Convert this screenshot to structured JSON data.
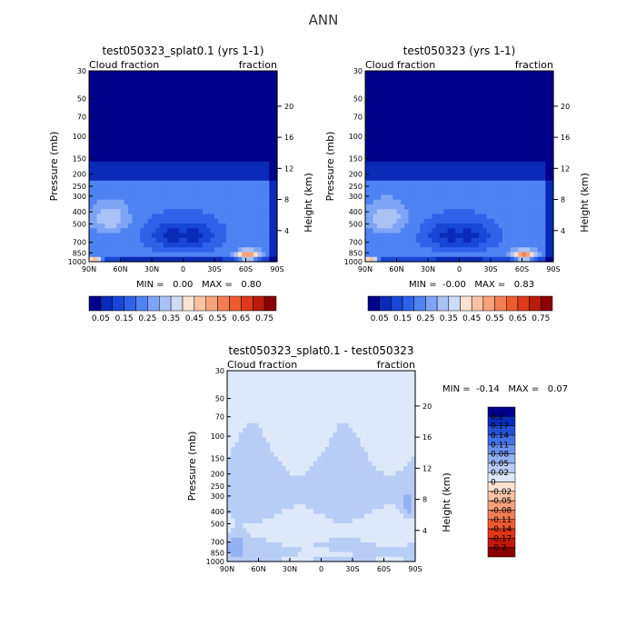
{
  "suptitle": "ANN",
  "chart_data": [
    {
      "type": "heatmap",
      "title": "test050323_splat0.1 (yrs 1-1)",
      "left_label": "Cloud fraction",
      "right_label": "fraction",
      "ylabel": "Pressure (mb)",
      "y2label": "Height (km)",
      "x_ticks": [
        "90N",
        "60N",
        "30N",
        "0",
        "30S",
        "60S",
        "90S"
      ],
      "y_ticks": [
        "1000",
        "850",
        "700",
        "500",
        "400",
        "300",
        "250",
        "200",
        "150",
        "100",
        "70",
        "50",
        "30"
      ],
      "y2_ticks": [
        "4",
        "8",
        "12",
        "16",
        "20"
      ],
      "ylim_mb": [
        1000,
        30
      ],
      "stats": "MIN =   0.00   MAX =   0.80",
      "colorbar": {
        "orientation": "horizontal",
        "labels": [
          "0.05",
          "0.15",
          "0.25",
          "0.35",
          "0.45",
          "0.55",
          "0.65",
          "0.75"
        ],
        "colors": [
          "#00008b",
          "#0a2ab8",
          "#1846d6",
          "#2f62e8",
          "#4f82f2",
          "#7ea4f5",
          "#a8c2f6",
          "#cddcf8",
          "#fbe2d0",
          "#f9c3a3",
          "#f7a27a",
          "#f47e54",
          "#ee5a30",
          "#dc3a1a",
          "#b81c0c",
          "#8b0000"
        ]
      }
    },
    {
      "type": "heatmap",
      "title": "test050323 (yrs 1-1)",
      "left_label": "Cloud fraction",
      "right_label": "fraction",
      "ylabel": "Pressure (mb)",
      "y2label": "Height (km)",
      "x_ticks": [
        "90N",
        "60N",
        "30N",
        "0",
        "30S",
        "60S",
        "90S"
      ],
      "y_ticks": [
        "1000",
        "850",
        "700",
        "500",
        "400",
        "300",
        "250",
        "200",
        "150",
        "100",
        "70",
        "50",
        "30"
      ],
      "y2_ticks": [
        "4",
        "8",
        "12",
        "16",
        "20"
      ],
      "ylim_mb": [
        1000,
        30
      ],
      "stats": "MIN =  -0.00   MAX =   0.83",
      "colorbar": {
        "orientation": "horizontal",
        "labels": [
          "0.05",
          "0.15",
          "0.25",
          "0.35",
          "0.45",
          "0.55",
          "0.65",
          "0.75"
        ],
        "colors": [
          "#00008b",
          "#0a2ab8",
          "#1846d6",
          "#2f62e8",
          "#4f82f2",
          "#7ea4f5",
          "#a8c2f6",
          "#cddcf8",
          "#fbe2d0",
          "#f9c3a3",
          "#f7a27a",
          "#f47e54",
          "#ee5a30",
          "#dc3a1a",
          "#b81c0c",
          "#8b0000"
        ]
      }
    },
    {
      "type": "heatmap",
      "title": "test050323_splat0.1 - test050323",
      "left_label": "Cloud fraction",
      "right_label": "fraction",
      "ylabel": "Pressure (mb)",
      "y2label": "Height (km)",
      "x_ticks": [
        "90N",
        "60N",
        "30N",
        "0",
        "30S",
        "60S",
        "90S"
      ],
      "y_ticks": [
        "1000",
        "850",
        "700",
        "500",
        "400",
        "300",
        "250",
        "200",
        "150",
        "100",
        "70",
        "50",
        "30"
      ],
      "y2_ticks": [
        "4",
        "8",
        "12",
        "16",
        "20"
      ],
      "ylim_mb": [
        1000,
        30
      ],
      "stats": "MIN =  -0.14   MAX =   0.07",
      "colorbar": {
        "orientation": "vertical",
        "labels": [
          "0.2",
          "0.17",
          "0.14",
          "0.11",
          "0.08",
          "0.05",
          "0.02",
          "0",
          "-0.02",
          "-0.05",
          "-0.08",
          "-0.11",
          "-0.14",
          "-0.17",
          "-0.2"
        ],
        "colors": [
          "#8b0000",
          "#c0180a",
          "#e03418",
          "#ee5a30",
          "#f47e54",
          "#f7a27a",
          "#f9c3a3",
          "#fbe2d0",
          "#dde8fa",
          "#b8cdf6",
          "#92b2f3",
          "#6b93ee",
          "#4270e6",
          "#2450d6",
          "#0a2ab8",
          "#00008b"
        ]
      }
    }
  ]
}
